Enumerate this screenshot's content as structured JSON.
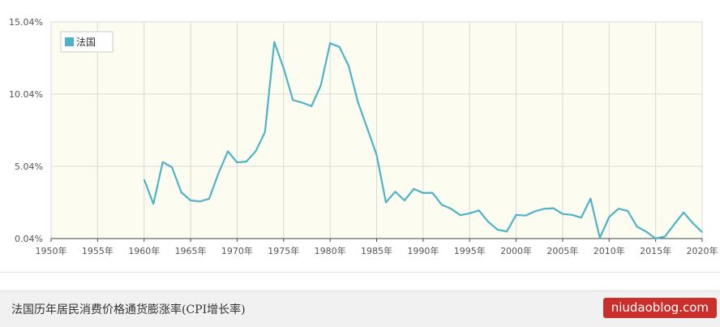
{
  "chart_data": {
    "type": "line",
    "title": "",
    "xlabel": "",
    "ylabel": "",
    "x_ticks": [
      "1950年",
      "1955年",
      "1960年",
      "1965年",
      "1970年",
      "1975年",
      "1980年",
      "1985年",
      "1990年",
      "1995年",
      "2000年",
      "2005年",
      "2010年",
      "2015年",
      "2020年"
    ],
    "y_ticks": [
      "0.04%",
      "5.04%",
      "10.04%",
      "15.04%"
    ],
    "y_tick_values": [
      0.04,
      5.04,
      10.04,
      15.04
    ],
    "xlim": [
      1950,
      2020
    ],
    "ylim": [
      0.04,
      15.04
    ],
    "grid": true,
    "legend": "top-left",
    "series": [
      {
        "name": "法国",
        "color": "#4fb3c8",
        "x": [
          1960,
          1961,
          1962,
          1963,
          1964,
          1965,
          1966,
          1967,
          1968,
          1969,
          1970,
          1971,
          1972,
          1973,
          1974,
          1975,
          1976,
          1977,
          1978,
          1979,
          1980,
          1981,
          1982,
          1983,
          1984,
          1985,
          1986,
          1987,
          1988,
          1989,
          1990,
          1991,
          1992,
          1993,
          1994,
          1995,
          1996,
          1997,
          1998,
          1999,
          2000,
          2001,
          2002,
          2003,
          2004,
          2005,
          2006,
          2007,
          2008,
          2009,
          2010,
          2011,
          2012,
          2013,
          2014,
          2015,
          2016,
          2017,
          2018,
          2019,
          2020
        ],
        "values": [
          4.14,
          2.44,
          5.33,
          4.98,
          3.24,
          2.68,
          2.61,
          2.8,
          4.56,
          6.08,
          5.31,
          5.37,
          6.09,
          7.41,
          13.65,
          11.83,
          9.63,
          9.45,
          9.21,
          10.65,
          13.56,
          13.31,
          11.98,
          9.46,
          7.67,
          5.83,
          2.54,
          3.29,
          2.68,
          3.48,
          3.19,
          3.21,
          2.38,
          2.1,
          1.66,
          1.79,
          1.99,
          1.2,
          0.66,
          0.53,
          1.68,
          1.63,
          1.92,
          2.1,
          2.14,
          1.74,
          1.68,
          1.49,
          2.81,
          0.09,
          1.53,
          2.11,
          1.95,
          0.86,
          0.51,
          0.04,
          0.18,
          1.03,
          1.85,
          1.11,
          0.48
        ]
      }
    ]
  },
  "footer": {
    "caption": "法国历年居民消费价格通货膨涨率(CPI增长率)"
  },
  "watermark": {
    "text": "niudaoblog.com"
  },
  "colors": {
    "plot_bg": "#fdfcf0",
    "grid": "#d9d9d9",
    "axis": "#444444",
    "line": "#4fb3c8"
  }
}
